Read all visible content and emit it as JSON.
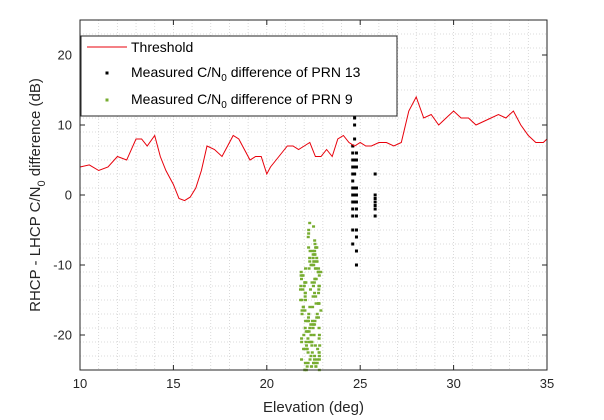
{
  "chart_data": {
    "type": "line+scatter",
    "title": "",
    "xlabel": "Elevation (deg)",
    "ylabel_parts": [
      "RHCP - LHCP C/N",
      "0",
      " difference (dB)"
    ],
    "xlim": [
      10,
      35
    ],
    "ylim": [
      -25,
      25
    ],
    "xticks": [
      10,
      15,
      20,
      25,
      30,
      35
    ],
    "yticks": [
      -20,
      -10,
      0,
      10,
      20
    ],
    "grid": "minor-dotted",
    "legend_position": "top-left",
    "colors": {
      "threshold": "#e8000b",
      "prn13": "#000000",
      "prn9": "#77ac30"
    },
    "series": [
      {
        "name": "Threshold",
        "kind": "line",
        "legend_parts": [
          "Threshold"
        ],
        "x": [
          10,
          10.5,
          11,
          11.5,
          12,
          12.5,
          13,
          13.3,
          13.6,
          14,
          14.3,
          14.6,
          15,
          15.3,
          15.6,
          15.9,
          16.2,
          16.5,
          16.8,
          17.2,
          17.6,
          17.9,
          18.2,
          18.5,
          18.8,
          19.1,
          19.4,
          19.7,
          20,
          20.2,
          20.5,
          20.8,
          21.1,
          21.4,
          21.7,
          22,
          22.3,
          22.6,
          22.9,
          23.2,
          23.5,
          23.8,
          24.1,
          24.4,
          24.7,
          25,
          25.3,
          25.6,
          26,
          26.4,
          26.8,
          27.2,
          27.6,
          28,
          28.4,
          28.8,
          29.2,
          29.6,
          30,
          30.4,
          30.8,
          31.2,
          31.6,
          32,
          32.4,
          32.8,
          33.2,
          33.6,
          34,
          34.4,
          34.8,
          35
        ],
        "y": [
          4,
          4.3,
          3.5,
          4,
          5.5,
          5,
          8,
          8,
          7,
          8.5,
          5.5,
          3.5,
          1.5,
          -0.5,
          -0.8,
          -0.3,
          1,
          3.5,
          7,
          6.5,
          5.5,
          7,
          8.5,
          8,
          6.5,
          5,
          5.5,
          5.5,
          3,
          4,
          5,
          6,
          7,
          7,
          6.5,
          7,
          7.5,
          5.5,
          5.5,
          6.5,
          5.5,
          8,
          8.5,
          7.5,
          7,
          7.5,
          7,
          7,
          7.5,
          7.5,
          7,
          7.5,
          12,
          14,
          11,
          11.5,
          10,
          11,
          12,
          11,
          11,
          10,
          10.5,
          11,
          11.5,
          11,
          12,
          10,
          8.5,
          7.5,
          7.5,
          8
        ]
      },
      {
        "name": "PRN 13",
        "kind": "scatter",
        "legend_parts": [
          "Measured C/N",
          "0",
          " difference of PRN 13"
        ],
        "x": [
          24.6,
          24.6,
          24.6,
          24.6,
          24.6,
          24.6,
          24.6,
          24.6,
          24.6,
          24.6,
          24.6,
          24.6,
          24.6,
          24.7,
          24.7,
          24.7,
          24.7,
          24.7,
          24.7,
          24.7,
          24.7,
          24.7,
          24.8,
          24.8,
          24.8,
          24.8,
          24.8,
          24.8,
          24.8,
          24.8,
          24.8,
          24.8,
          24.8,
          24.8,
          25.8,
          25.8,
          25.8,
          25.8,
          25.8,
          25.8,
          25.8
        ],
        "y": [
          7,
          6,
          5,
          4,
          3,
          2,
          1,
          0,
          -1,
          -2,
          -3,
          -5,
          -7,
          11,
          10,
          8,
          5,
          4,
          3,
          1,
          0,
          -1,
          6,
          5,
          4,
          1,
          0,
          -1,
          -2,
          -3,
          -5,
          -6,
          -8,
          -10,
          3,
          0,
          -0.5,
          -1,
          -1.5,
          -2,
          -3
        ]
      },
      {
        "name": "PRN 9",
        "kind": "scatter",
        "legend_parts": [
          "Measured C/N",
          "0",
          " difference of PRN 9"
        ],
        "x_min": 21.8,
        "x_max": 22.9,
        "y_min": -25,
        "y_max": -4
      }
    ]
  }
}
